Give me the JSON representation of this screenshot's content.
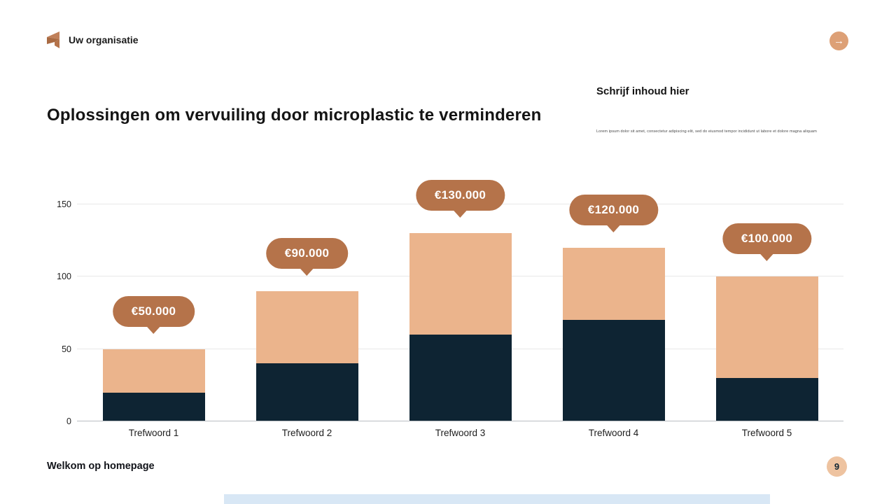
{
  "header": {
    "brand": "Uw organisatie"
  },
  "title": "Oplossingen om vervuiling door microplastic te verminderen",
  "content_panel": {
    "heading": "Schrijf inhoud hier",
    "body": "Lorem ipsum dolor sit amet, consectetur adipiscing elit, sed do eiusmod tempor incididunt ut labore et dolore magna aliquam"
  },
  "footer": {
    "left": "Welkom op homepage",
    "page_number": "9"
  },
  "icons": {
    "next_arrow": "→",
    "logo": "folded-ribbon-mark"
  },
  "colors": {
    "navy": "#0e2433",
    "tan": "#ebb48c",
    "brown": "#b5734a",
    "accent_circle": "#dda076",
    "page_badge": "#eec3a0",
    "bottom_strip": "#d8e7f5"
  },
  "chart_data": {
    "type": "bar",
    "stacked": true,
    "title": "",
    "xlabel": "",
    "ylabel": "",
    "categories": [
      "Trefwoord 1",
      "Trefwoord 2",
      "Trefwoord 3",
      "Trefwoord 4",
      "Trefwoord 5"
    ],
    "series": [
      {
        "name": "bottom-segment",
        "color": "#0e2433",
        "values": [
          20,
          40,
          60,
          70,
          30
        ]
      },
      {
        "name": "top-segment",
        "color": "#ebb48c",
        "values": [
          30,
          50,
          70,
          50,
          70
        ]
      }
    ],
    "totals": [
      50,
      90,
      130,
      120,
      100
    ],
    "value_labels": [
      "€50.000",
      "€90.000",
      "€130.000",
      "€120.000",
      "€100.000"
    ],
    "yticks": [
      0,
      50,
      100,
      150
    ],
    "ylim": [
      0,
      150
    ],
    "grid": true,
    "legend": "none"
  }
}
